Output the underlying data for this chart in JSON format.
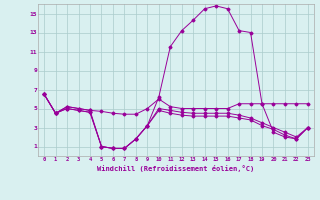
{
  "x": [
    0,
    1,
    2,
    3,
    4,
    5,
    6,
    7,
    8,
    9,
    10,
    11,
    12,
    13,
    14,
    15,
    16,
    17,
    18,
    19,
    20,
    21,
    22,
    23
  ],
  "y_main": [
    6.5,
    4.5,
    5.2,
    5.0,
    4.8,
    1.0,
    0.8,
    0.8,
    1.8,
    3.2,
    6.2,
    11.5,
    13.2,
    14.3,
    15.5,
    15.8,
    15.5,
    13.2,
    13.0,
    5.5,
    2.5,
    2.0,
    1.8,
    3.0
  ],
  "y_flat1": [
    6.5,
    4.5,
    5.2,
    5.0,
    4.8,
    4.7,
    4.5,
    4.4,
    4.4,
    5.0,
    6.0,
    5.2,
    5.0,
    5.0,
    5.0,
    5.0,
    5.0,
    5.5,
    5.5,
    5.5,
    5.5,
    5.5,
    5.5,
    5.5
  ],
  "y_flat2": [
    6.5,
    4.5,
    5.0,
    4.8,
    4.6,
    1.0,
    0.8,
    0.8,
    1.8,
    3.2,
    5.0,
    4.8,
    4.6,
    4.5,
    4.5,
    4.5,
    4.5,
    4.3,
    4.0,
    3.5,
    3.0,
    2.5,
    2.0,
    3.0
  ],
  "y_flat3": [
    6.5,
    4.5,
    5.0,
    4.8,
    4.6,
    1.0,
    0.8,
    0.8,
    1.8,
    3.2,
    4.8,
    4.5,
    4.3,
    4.2,
    4.2,
    4.2,
    4.2,
    4.0,
    3.8,
    3.2,
    2.8,
    2.2,
    1.8,
    3.0
  ],
  "line_color": "#990099",
  "bg_color": "#d9f0f0",
  "grid_color": "#aacccc",
  "xlabel": "Windchill (Refroidissement éolien,°C)",
  "xlim": [
    -0.5,
    23.5
  ],
  "ylim": [
    0,
    16
  ],
  "xticks": [
    0,
    1,
    2,
    3,
    4,
    5,
    6,
    7,
    8,
    9,
    10,
    11,
    12,
    13,
    14,
    15,
    16,
    17,
    18,
    19,
    20,
    21,
    22,
    23
  ],
  "yticks": [
    1,
    3,
    5,
    7,
    9,
    11,
    13,
    15
  ]
}
